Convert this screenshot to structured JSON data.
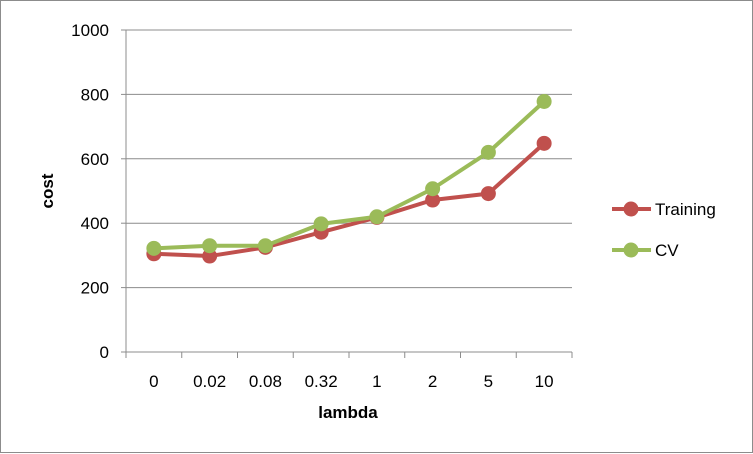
{
  "chart_data": {
    "type": "line",
    "title": "",
    "xlabel": "lambda",
    "ylabel": "cost",
    "categories": [
      "0",
      "0.02",
      "0.08",
      "0.32",
      "1",
      "2",
      "5",
      "10"
    ],
    "ylim": [
      0,
      1000
    ],
    "yticks": [
      0,
      200,
      400,
      600,
      800,
      1000
    ],
    "grid": "horizontal",
    "legend_position": "right",
    "series": [
      {
        "name": "Training",
        "color": "#c0504d",
        "values": [
          305,
          298,
          325,
          372,
          418,
          472,
          492,
          648
        ]
      },
      {
        "name": "CV",
        "color": "#9bbb59",
        "values": [
          322,
          330,
          330,
          398,
          420,
          507,
          620,
          778
        ]
      }
    ]
  }
}
